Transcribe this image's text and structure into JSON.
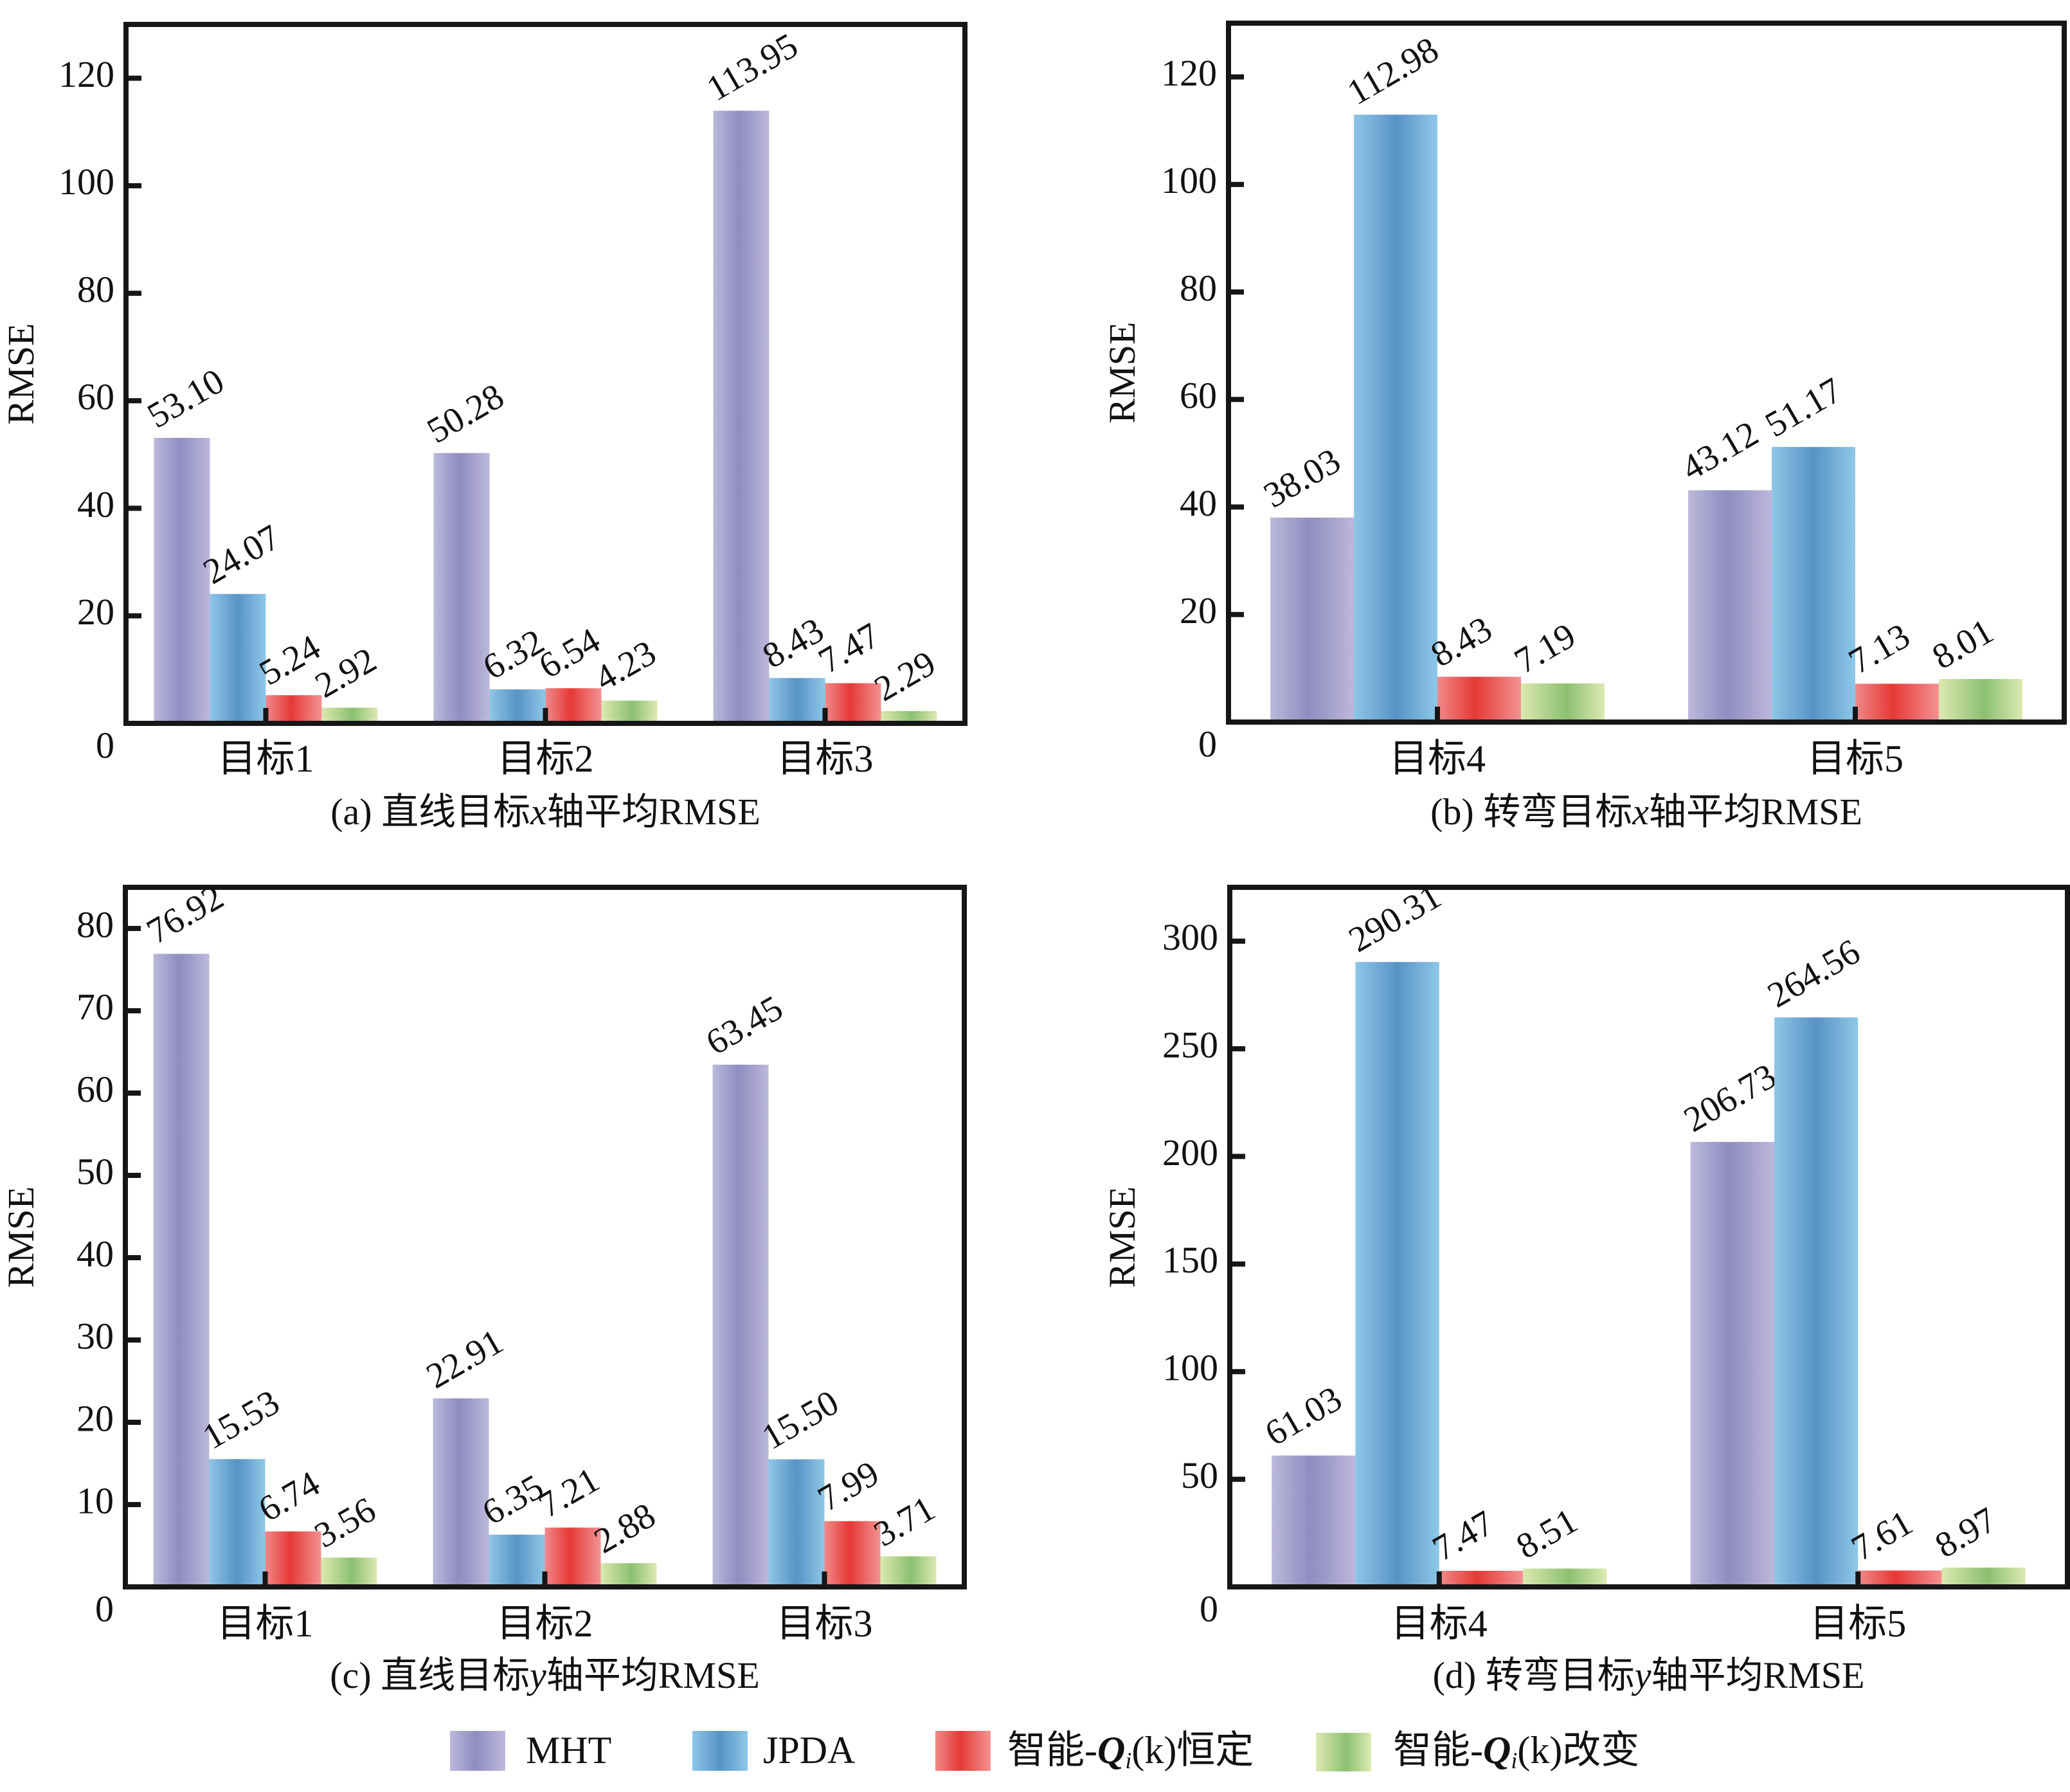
{
  "legend": {
    "position": "bottom-center",
    "items": [
      {
        "name": "MHT",
        "label": "MHT",
        "color": "#9593c3"
      },
      {
        "name": "JPDA",
        "label": "JPDA",
        "color": "#5b9bcb"
      },
      {
        "name": "智能-Qi(k)恒定",
        "label_prefix": "智能-",
        "label_q": "Q",
        "label_sub": "i",
        "label_suffix": "(k)恒定",
        "color": "#e53935"
      },
      {
        "name": "智能-Qi(k)改变",
        "label_prefix": "智能-",
        "label_q": "Q",
        "label_sub": "i",
        "label_suffix": "(k)改变",
        "color": "#8fc472"
      }
    ]
  },
  "chart_data": [
    {
      "id": "a",
      "type": "bar",
      "title": "(a) 直线目标x轴平均RMSE",
      "caption_parts": [
        "(a) 直线目标",
        "x",
        "轴平均RMSE"
      ],
      "xlabel": "",
      "ylabel": "RMSE",
      "ylim": [
        0,
        130
      ],
      "yticks": [
        0,
        20,
        40,
        60,
        80,
        100,
        120
      ],
      "grid": false,
      "categories": [
        "目标1",
        "目标2",
        "目标3"
      ],
      "series": [
        {
          "name": "MHT",
          "values": [
            53.1,
            50.28,
            113.95
          ],
          "labels": [
            "53.10",
            "50.28",
            "113.95"
          ]
        },
        {
          "name": "JPDA",
          "values": [
            24.07,
            6.32,
            8.43
          ],
          "labels": [
            "24.07",
            "6.32",
            "8.43"
          ]
        },
        {
          "name": "智能-Qi(k)恒定",
          "values": [
            5.24,
            6.54,
            7.47
          ],
          "labels": [
            "5.24",
            "6.54",
            "7.47"
          ]
        },
        {
          "name": "智能-Qi(k)改变",
          "values": [
            2.92,
            4.23,
            2.29
          ],
          "labels": [
            "2.92",
            "4.23",
            "2.29"
          ]
        }
      ]
    },
    {
      "id": "b",
      "type": "bar",
      "title": "(b) 转弯目标x轴平均RMSE",
      "caption_parts": [
        "(b) 转弯目标",
        "x",
        "轴平均RMSE"
      ],
      "xlabel": "",
      "ylabel": "RMSE",
      "ylim": [
        0,
        130
      ],
      "yticks": [
        0,
        20,
        40,
        60,
        80,
        100,
        120
      ],
      "grid": false,
      "categories": [
        "目标4",
        "目标5"
      ],
      "series": [
        {
          "name": "MHT",
          "values": [
            38.03,
            43.12
          ],
          "labels": [
            "38.03",
            "43.12"
          ]
        },
        {
          "name": "JPDA",
          "values": [
            112.98,
            51.17
          ],
          "labels": [
            "112.98",
            "51.17"
          ]
        },
        {
          "name": "智能-Qi(k)恒定",
          "values": [
            8.43,
            7.13
          ],
          "labels": [
            "8.43",
            "7.13"
          ]
        },
        {
          "name": "智能-Qi(k)改变",
          "values": [
            7.19,
            8.01
          ],
          "labels": [
            "7.19",
            "8.01"
          ]
        }
      ]
    },
    {
      "id": "c",
      "type": "bar",
      "title": "(c) 直线目标y轴平均RMSE",
      "caption_parts": [
        "(c) 直线目标",
        "y",
        "轴平均RMSE"
      ],
      "xlabel": "",
      "ylabel": "RMSE",
      "ylim": [
        0,
        85
      ],
      "yticks": [
        0,
        10,
        20,
        30,
        40,
        50,
        60,
        70,
        80
      ],
      "grid": false,
      "categories": [
        "目标1",
        "目标2",
        "目标3"
      ],
      "series": [
        {
          "name": "MHT",
          "values": [
            76.92,
            22.91,
            63.45
          ],
          "labels": [
            "76.92",
            "22.91",
            "63.45"
          ]
        },
        {
          "name": "JPDA",
          "values": [
            15.53,
            6.35,
            15.5
          ],
          "labels": [
            "15.53",
            "6.35",
            "15.50"
          ]
        },
        {
          "name": "智能-Qi(k)恒定",
          "values": [
            6.74,
            7.21,
            7.99
          ],
          "labels": [
            "6.74",
            "7.21",
            "7.99"
          ]
        },
        {
          "name": "智能-Qi(k)改变",
          "values": [
            3.56,
            2.88,
            3.71
          ],
          "labels": [
            "3.56",
            "2.88",
            "3.71"
          ]
        }
      ]
    },
    {
      "id": "d",
      "type": "bar",
      "title": "(d) 转弯目标y轴平均RMSE",
      "caption_parts": [
        "(d) 转弯目标",
        "y",
        "轴平均RMSE"
      ],
      "xlabel": "",
      "ylabel": "RMSE",
      "ylim": [
        0,
        325
      ],
      "yticks": [
        0,
        50,
        100,
        150,
        200,
        250,
        300
      ],
      "grid": false,
      "categories": [
        "目标4",
        "目标5"
      ],
      "series": [
        {
          "name": "MHT",
          "values": [
            61.03,
            206.73
          ],
          "labels": [
            "61.03",
            "206.73"
          ]
        },
        {
          "name": "JPDA",
          "values": [
            290.31,
            264.56
          ],
          "labels": [
            "290.31",
            "264.56"
          ]
        },
        {
          "name": "智能-Qi(k)恒定",
          "values": [
            7.47,
            7.61
          ],
          "labels": [
            "7.47",
            "7.61"
          ]
        },
        {
          "name": "智能-Qi(k)改变",
          "values": [
            8.51,
            8.97
          ],
          "labels": [
            "8.51",
            "8.97"
          ]
        }
      ]
    }
  ]
}
